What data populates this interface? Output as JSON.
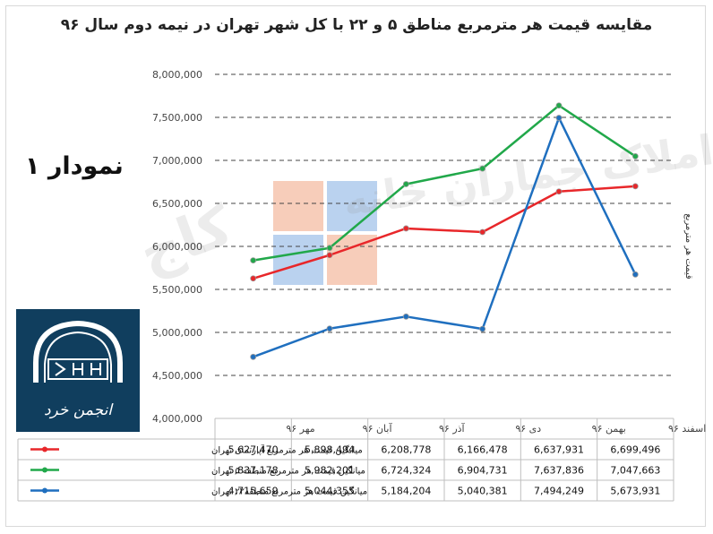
{
  "title": "مقایسه قیمت هر مترمربع مناطق ۵ و ۲۲ با کل شهر تهران در نیمه دوم سال ۹۶",
  "chart_number_label": "نمودار ۱",
  "logo_text": "انجمن خرد",
  "watermark_text": "کارشناسان املاک جماران خانه",
  "watermark_brand": "کاج",
  "colors": {
    "tehran": "#e8272a",
    "region5": "#21a84a",
    "region22": "#1f6fbf",
    "logo_bg": "#103e5e"
  },
  "chart_data": {
    "type": "line",
    "title": "مقایسه قیمت هر مترمربع مناطق ۵ و ۲۲ با کل شهر تهران در نیمه دوم سال ۹۶",
    "ylabel": "قیمت هر مترمربع",
    "xlabel": "",
    "ylim": [
      4000000,
      8000000
    ],
    "y_ticks": [
      4000000,
      4500000,
      5000000,
      5500000,
      6000000,
      6500000,
      7000000,
      7500000,
      8000000
    ],
    "y_tick_labels": [
      "4,000,000",
      "4,500,000",
      "5,000,000",
      "5,500,000",
      "6,000,000",
      "6,500,000",
      "7,000,000",
      "7,500,000",
      "8,000,000"
    ],
    "grid": true,
    "categories": [
      "مهر ۹۶",
      "آبان ۹۶",
      "آذر ۹۶",
      "دی ۹۶",
      "بهمن ۹۶",
      "اسفند ۹۶"
    ],
    "series": [
      {
        "name": "میانگین قیمت هر مترمربع آپارتمان تهران",
        "color": "#e8272a",
        "values": [
          5627470,
          5898494,
          6208778,
          6166478,
          6637931,
          6699496
        ],
        "labels": [
          "5,627,470",
          "5,898,494",
          "6,208,778",
          "6,166,478",
          "6,637,931",
          "6,699,496"
        ]
      },
      {
        "name": "میانگین قیمت هر مترمربع منطقه ۵ تهران",
        "color": "#21a84a",
        "values": [
          5837178,
          5982201,
          6724324,
          6904731,
          7637836,
          7047663
        ],
        "labels": [
          "5,837,178",
          "5,982,201",
          "6,724,324",
          "6,904,731",
          "7,637,836",
          "7,047,663"
        ]
      },
      {
        "name": "میانگین قیمت هر مترمربع منطقه۲۲ تهران",
        "color": "#1f6fbf",
        "values": [
          4715659,
          5044355,
          5184204,
          5040381,
          7494249,
          5673931
        ],
        "labels": [
          "4,715,659",
          "5,044,355",
          "5,184,204",
          "5,040,381",
          "7,494,249",
          "5,673,931"
        ]
      }
    ]
  }
}
